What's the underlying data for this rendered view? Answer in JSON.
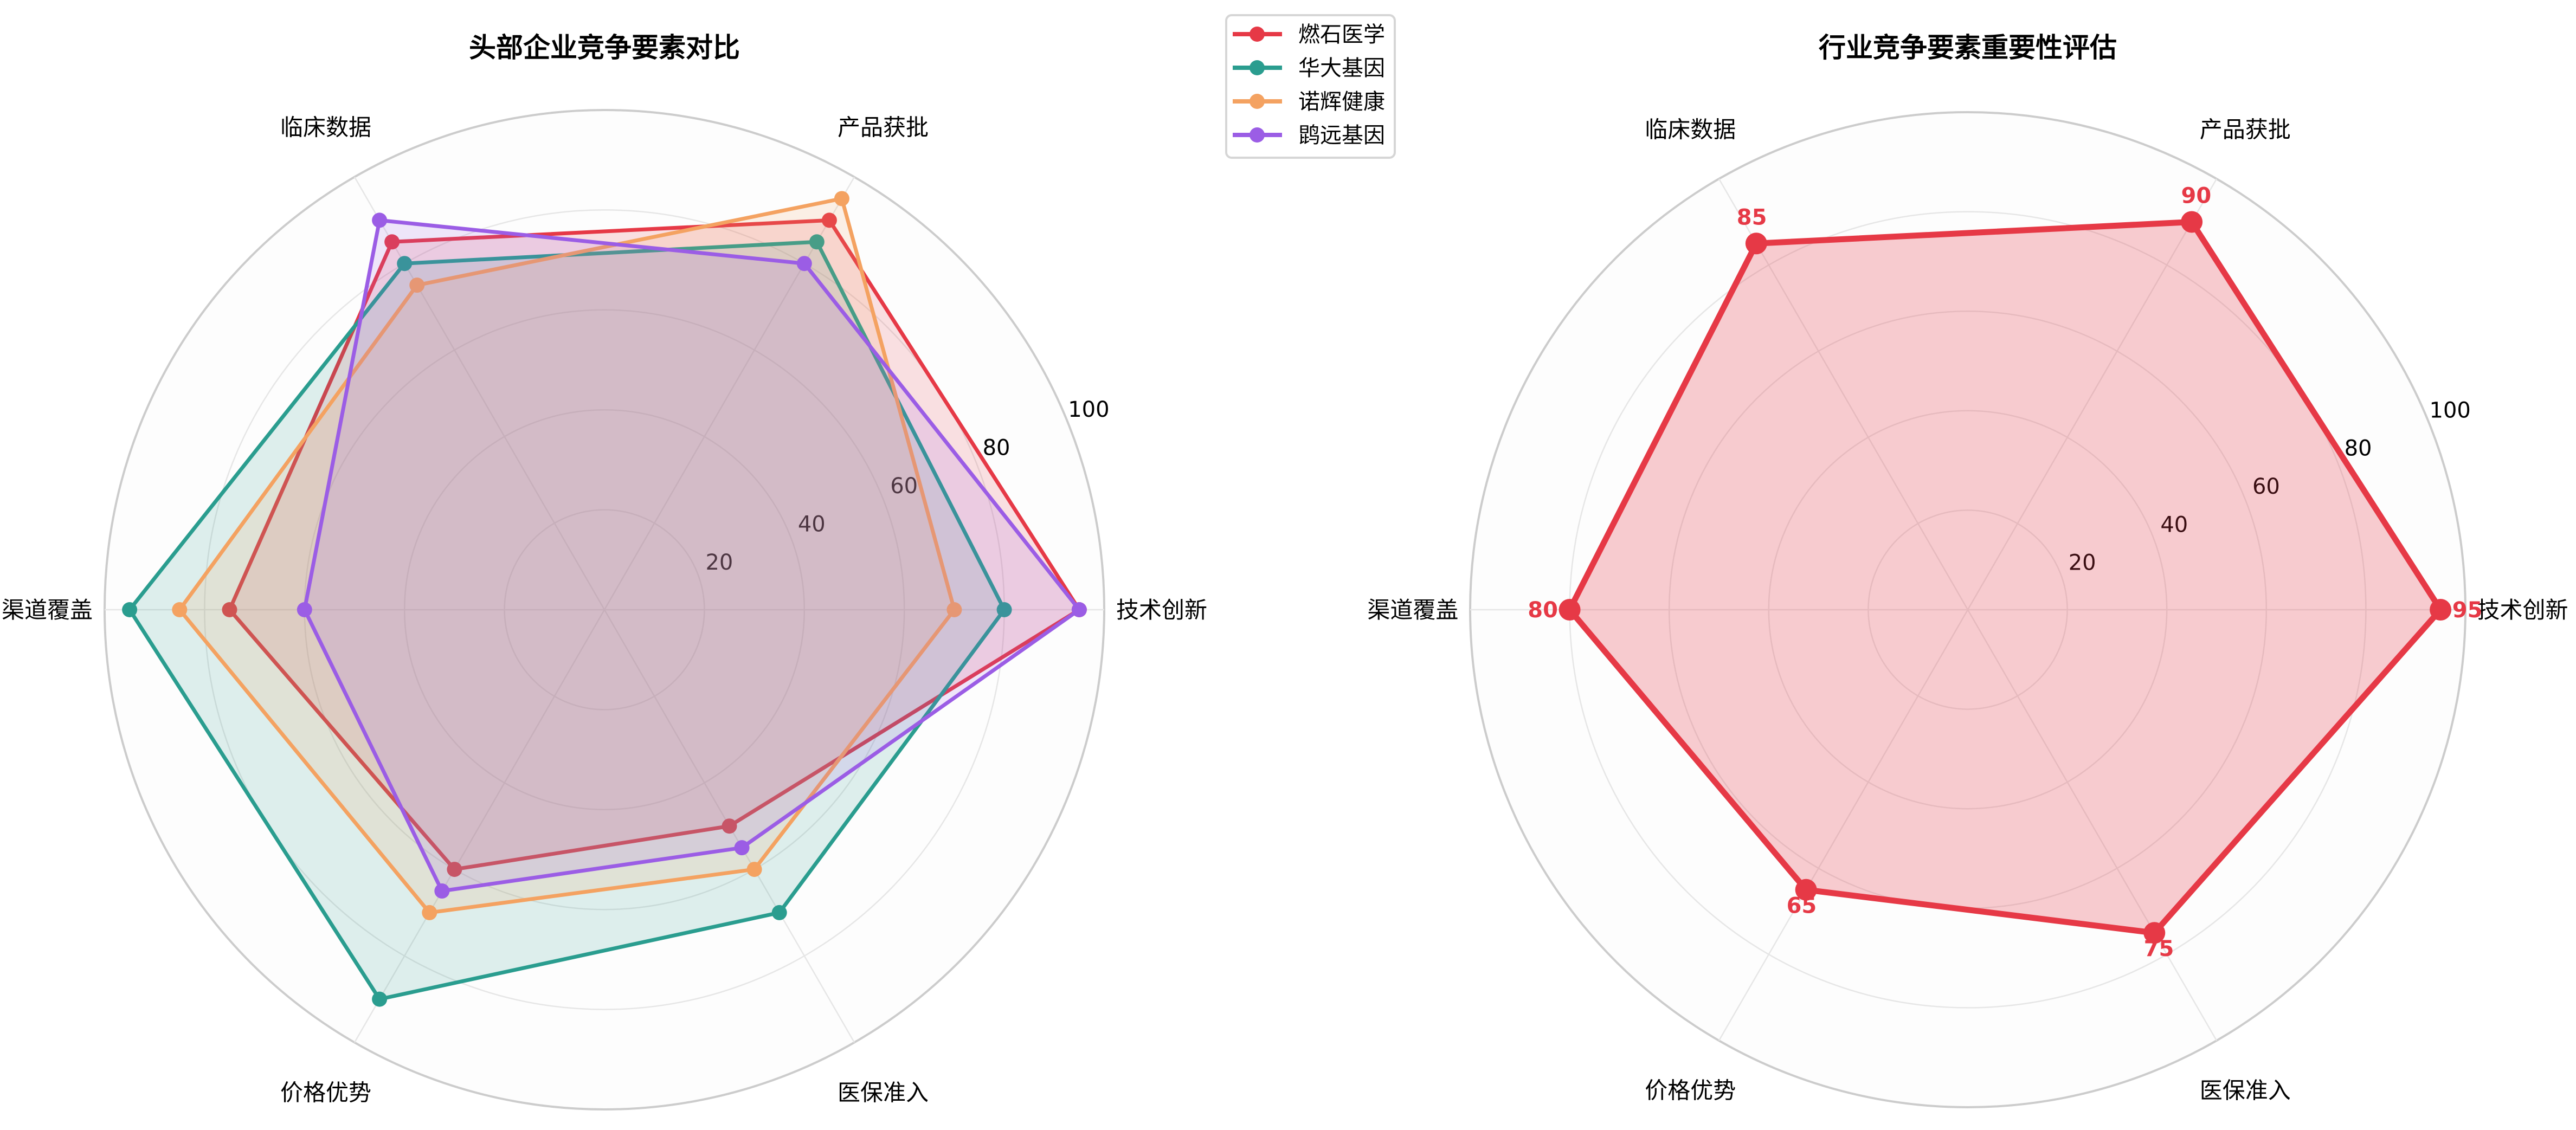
{
  "chart_data": [
    {
      "type": "radar",
      "title": "头部企业竞争要素对比",
      "categories": [
        "技术创新",
        "产品获批",
        "临床数据",
        "渠道覆盖",
        "价格优势",
        "医保准入"
      ],
      "rlim": [
        0,
        100
      ],
      "rticks": [
        20,
        40,
        60,
        80,
        100
      ],
      "grid": true,
      "legend_position": "top-center",
      "series": [
        {
          "name": "燃石医学",
          "color": "#e63946",
          "values": [
            95,
            90,
            85,
            75,
            60,
            50
          ]
        },
        {
          "name": "华大基因",
          "color": "#2a9d8f",
          "values": [
            80,
            85,
            80,
            95,
            90,
            70
          ]
        },
        {
          "name": "诺辉健康",
          "color": "#f4a261",
          "values": [
            70,
            95,
            75,
            85,
            70,
            60
          ]
        },
        {
          "name": "鹍远基因",
          "color": "#9b5de5",
          "values": [
            95,
            80,
            90,
            60,
            65,
            55
          ]
        }
      ]
    },
    {
      "type": "radar",
      "title": "行业竞争要素重要性评估",
      "categories": [
        "技术创新",
        "产品获批",
        "临床数据",
        "渠道覆盖",
        "价格优势",
        "医保准入"
      ],
      "rlim": [
        0,
        100
      ],
      "rticks": [
        20,
        40,
        60,
        80,
        100
      ],
      "grid": true,
      "series": [
        {
          "color": "#e63946",
          "values": [
            95,
            90,
            85,
            80,
            65,
            75
          ],
          "data_labels": [
            "95",
            "90",
            "85",
            "80",
            "65",
            "75"
          ]
        }
      ]
    }
  ]
}
